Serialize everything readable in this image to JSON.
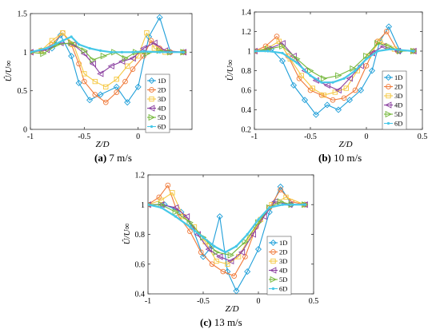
{
  "chart_data": [
    {
      "type": "line",
      "caption_label": "(a)",
      "caption_text": "7 m/s",
      "xlabel": "Z/D",
      "ylabel": "Û/U∞",
      "xlim": [
        -1,
        0.5
      ],
      "ylim": [
        0,
        1.5
      ],
      "xticks": [
        "-1",
        "-0.5",
        "0"
      ],
      "yticks": [
        "0",
        "0.5",
        "1",
        "1.5"
      ],
      "legend_position": "right",
      "series": [
        {
          "name": "1D",
          "color": "#1f9fd9",
          "marker": "diamond",
          "x": [
            -1.0,
            -0.9,
            -0.8,
            -0.72,
            -0.62,
            -0.55,
            -0.45,
            -0.35,
            -0.2,
            -0.1,
            0.0,
            0.1,
            0.2,
            0.3,
            0.42
          ],
          "y": [
            1.0,
            1.02,
            1.05,
            1.22,
            0.95,
            0.6,
            0.38,
            0.45,
            0.55,
            0.35,
            0.55,
            1.2,
            1.45,
            1.0,
            1.0
          ]
        },
        {
          "name": "2D",
          "color": "#f07a3a",
          "marker": "circle",
          "x": [
            -1.0,
            -0.9,
            -0.8,
            -0.7,
            -0.62,
            -0.55,
            -0.5,
            -0.4,
            -0.3,
            -0.2,
            -0.12,
            -0.05,
            0.05,
            0.12,
            0.2,
            0.3,
            0.42
          ],
          "y": [
            1.0,
            1.02,
            1.1,
            1.25,
            1.1,
            0.85,
            0.62,
            0.45,
            0.35,
            0.48,
            0.62,
            0.78,
            0.95,
            1.15,
            1.05,
            1.0,
            1.0
          ]
        },
        {
          "name": "3D",
          "color": "#f5c842",
          "marker": "square",
          "x": [
            -1.0,
            -0.9,
            -0.8,
            -0.7,
            -0.6,
            -0.5,
            -0.4,
            -0.3,
            -0.2,
            -0.1,
            0.0,
            0.08,
            0.15,
            0.25,
            0.42
          ],
          "y": [
            1.0,
            1.02,
            1.15,
            1.25,
            1.1,
            0.72,
            0.62,
            0.55,
            0.65,
            0.82,
            0.95,
            1.25,
            1.05,
            1.0,
            1.0
          ]
        },
        {
          "name": "4D",
          "color": "#8a3fa0",
          "marker": "triangle-left",
          "x": [
            -1.0,
            -0.85,
            -0.72,
            -0.6,
            -0.5,
            -0.42,
            -0.35,
            -0.25,
            -0.15,
            -0.05,
            0.05,
            0.15,
            0.25,
            0.42
          ],
          "y": [
            1.0,
            1.03,
            1.12,
            1.1,
            0.98,
            0.85,
            0.72,
            0.82,
            0.88,
            0.92,
            1.05,
            1.12,
            1.02,
            1.0
          ]
        },
        {
          "name": "5D",
          "color": "#74b73a",
          "marker": "triangle-right",
          "x": [
            -1.0,
            -0.88,
            -0.75,
            -0.62,
            -0.5,
            -0.42,
            -0.32,
            -0.22,
            -0.12,
            -0.02,
            0.08,
            0.2,
            0.3,
            0.42
          ],
          "y": [
            1.0,
            0.98,
            1.1,
            1.12,
            1.02,
            0.9,
            0.95,
            1.0,
            0.92,
            1.0,
            0.98,
            1.02,
            1.0,
            1.0
          ]
        },
        {
          "name": "6D",
          "color": "#46c8e8",
          "marker": "point",
          "x": [
            -1.0,
            -0.85,
            -0.7,
            -0.62,
            -0.55,
            -0.45,
            -0.35,
            -0.25,
            -0.15,
            -0.05,
            0.05,
            0.2,
            0.42
          ],
          "y": [
            1.0,
            1.05,
            1.15,
            1.2,
            1.1,
            1.05,
            1.02,
            1.0,
            1.0,
            1.0,
            1.01,
            1.0,
            1.0
          ]
        }
      ]
    },
    {
      "type": "line",
      "caption_label": "(b)",
      "caption_text": "10 m/s",
      "xlabel": "Z/D",
      "ylabel": "Û/U∞",
      "xlim": [
        -1,
        0.5
      ],
      "ylim": [
        0.2,
        1.4
      ],
      "xticks": [
        "-1",
        "-0.5",
        "0",
        "0.5"
      ],
      "yticks": [
        "0.2",
        "0.4",
        "0.6",
        "0.8",
        "1",
        "1.2",
        "1.4"
      ],
      "legend_position": "right",
      "series": [
        {
          "name": "1D",
          "color": "#1f9fd9",
          "marker": "diamond",
          "x": [
            -1.0,
            -0.85,
            -0.75,
            -0.65,
            -0.55,
            -0.45,
            -0.35,
            -0.25,
            -0.15,
            -0.05,
            0.05,
            0.12,
            0.2,
            0.3,
            0.42
          ],
          "y": [
            1.0,
            1.02,
            0.9,
            0.65,
            0.5,
            0.35,
            0.45,
            0.4,
            0.5,
            0.6,
            0.8,
            1.1,
            1.25,
            1.0,
            1.0
          ]
        },
        {
          "name": "2D",
          "color": "#f07a3a",
          "marker": "circle",
          "x": [
            -1.0,
            -0.9,
            -0.8,
            -0.7,
            -0.6,
            -0.5,
            -0.4,
            -0.3,
            -0.2,
            -0.1,
            0.0,
            0.1,
            0.18,
            0.28,
            0.42
          ],
          "y": [
            1.0,
            1.05,
            1.15,
            0.95,
            0.72,
            0.6,
            0.55,
            0.5,
            0.52,
            0.6,
            0.85,
            1.1,
            1.2,
            1.0,
            1.0
          ]
        },
        {
          "name": "3D",
          "color": "#f5c842",
          "marker": "square",
          "x": [
            -1.0,
            -0.88,
            -0.78,
            -0.68,
            -0.58,
            -0.48,
            -0.38,
            -0.28,
            -0.18,
            -0.08,
            0.02,
            0.12,
            0.25,
            0.42
          ],
          "y": [
            1.0,
            1.03,
            1.1,
            0.92,
            0.75,
            0.62,
            0.55,
            0.58,
            0.62,
            0.8,
            0.95,
            1.1,
            1.02,
            1.0
          ]
        },
        {
          "name": "4D",
          "color": "#8a3fa0",
          "marker": "triangle-left",
          "x": [
            -1.0,
            -0.88,
            -0.75,
            -0.65,
            -0.55,
            -0.45,
            -0.35,
            -0.25,
            -0.15,
            -0.05,
            0.05,
            0.15,
            0.28,
            0.42
          ],
          "y": [
            1.0,
            1.02,
            1.08,
            0.95,
            0.8,
            0.7,
            0.65,
            0.6,
            0.72,
            0.85,
            0.98,
            1.05,
            1.0,
            1.0
          ]
        },
        {
          "name": "5D",
          "color": "#74b73a",
          "marker": "triangle-right",
          "x": [
            -1.0,
            -0.88,
            -0.75,
            -0.62,
            -0.5,
            -0.38,
            -0.25,
            -0.12,
            0.0,
            0.1,
            0.2,
            0.3,
            0.42
          ],
          "y": [
            1.0,
            1.02,
            1.05,
            0.92,
            0.8,
            0.72,
            0.75,
            0.82,
            0.95,
            1.08,
            1.05,
            1.0,
            1.0
          ]
        },
        {
          "name": "6D",
          "color": "#46c8e8",
          "marker": "point",
          "x": [
            -1.0,
            -0.88,
            -0.75,
            -0.62,
            -0.5,
            -0.4,
            -0.3,
            -0.2,
            -0.1,
            0.0,
            0.1,
            0.22,
            0.42
          ],
          "y": [
            1.0,
            1.0,
            0.98,
            0.88,
            0.75,
            0.68,
            0.68,
            0.72,
            0.8,
            0.92,
            1.0,
            1.02,
            1.0
          ]
        }
      ]
    },
    {
      "type": "line",
      "caption_label": "(c)",
      "caption_text": "13 m/s",
      "xlabel": "Z/D",
      "ylabel": "Û/U∞",
      "xlim": [
        -1,
        0.5
      ],
      "ylim": [
        0.4,
        1.2
      ],
      "xticks": [
        "-1",
        "-0.5",
        "0",
        "0.5"
      ],
      "yticks": [
        "0.4",
        "0.6",
        "0.8",
        "1",
        "1.2"
      ],
      "legend_position": "right",
      "series": [
        {
          "name": "1D",
          "color": "#1f9fd9",
          "marker": "diamond",
          "x": [
            -1.0,
            -0.85,
            -0.7,
            -0.6,
            -0.5,
            -0.42,
            -0.35,
            -0.28,
            -0.2,
            -0.1,
            0.0,
            0.1,
            0.2,
            0.3,
            0.42
          ],
          "y": [
            1.0,
            1.0,
            0.95,
            0.85,
            0.65,
            0.72,
            0.92,
            0.55,
            0.42,
            0.55,
            0.7,
            0.95,
            1.12,
            1.0,
            1.0
          ]
        },
        {
          "name": "2D",
          "color": "#f07a3a",
          "marker": "circle",
          "x": [
            -1.0,
            -0.9,
            -0.82,
            -0.72,
            -0.62,
            -0.52,
            -0.42,
            -0.32,
            -0.22,
            -0.12,
            -0.02,
            0.1,
            0.2,
            0.3,
            0.42
          ],
          "y": [
            1.0,
            1.05,
            1.13,
            0.92,
            0.82,
            0.68,
            0.6,
            0.55,
            0.52,
            0.65,
            0.85,
            0.98,
            1.1,
            1.02,
            1.0
          ]
        },
        {
          "name": "3D",
          "color": "#f5c842",
          "marker": "square",
          "x": [
            -1.0,
            -0.88,
            -0.78,
            -0.68,
            -0.58,
            -0.48,
            -0.38,
            -0.28,
            -0.18,
            -0.08,
            0.02,
            0.12,
            0.25,
            0.42
          ],
          "y": [
            1.0,
            1.03,
            1.08,
            0.92,
            0.85,
            0.75,
            0.62,
            0.6,
            0.65,
            0.78,
            0.9,
            1.0,
            1.05,
            1.0
          ]
        },
        {
          "name": "4D",
          "color": "#8a3fa0",
          "marker": "triangle-left",
          "x": [
            -1.0,
            -0.88,
            -0.75,
            -0.65,
            -0.55,
            -0.45,
            -0.35,
            -0.25,
            -0.15,
            -0.05,
            0.05,
            0.15,
            0.28,
            0.42
          ],
          "y": [
            1.0,
            1.0,
            0.98,
            0.92,
            0.8,
            0.7,
            0.65,
            0.62,
            0.68,
            0.8,
            0.92,
            1.02,
            1.0,
            1.0
          ]
        },
        {
          "name": "5D",
          "color": "#74b73a",
          "marker": "triangle-right",
          "x": [
            -1.0,
            -0.88,
            -0.75,
            -0.62,
            -0.5,
            -0.38,
            -0.25,
            -0.12,
            0.0,
            0.1,
            0.2,
            0.3,
            0.42
          ],
          "y": [
            1.0,
            1.0,
            0.95,
            0.88,
            0.78,
            0.68,
            0.66,
            0.75,
            0.88,
            0.98,
            1.02,
            1.0,
            1.0
          ]
        },
        {
          "name": "6D",
          "color": "#46c8e8",
          "marker": "point",
          "x": [
            -1.0,
            -0.88,
            -0.75,
            -0.62,
            -0.5,
            -0.4,
            -0.3,
            -0.2,
            -0.1,
            0.0,
            0.1,
            0.22,
            0.42
          ],
          "y": [
            1.0,
            0.98,
            0.92,
            0.85,
            0.78,
            0.72,
            0.68,
            0.72,
            0.8,
            0.9,
            0.98,
            1.0,
            1.0
          ]
        }
      ]
    }
  ]
}
